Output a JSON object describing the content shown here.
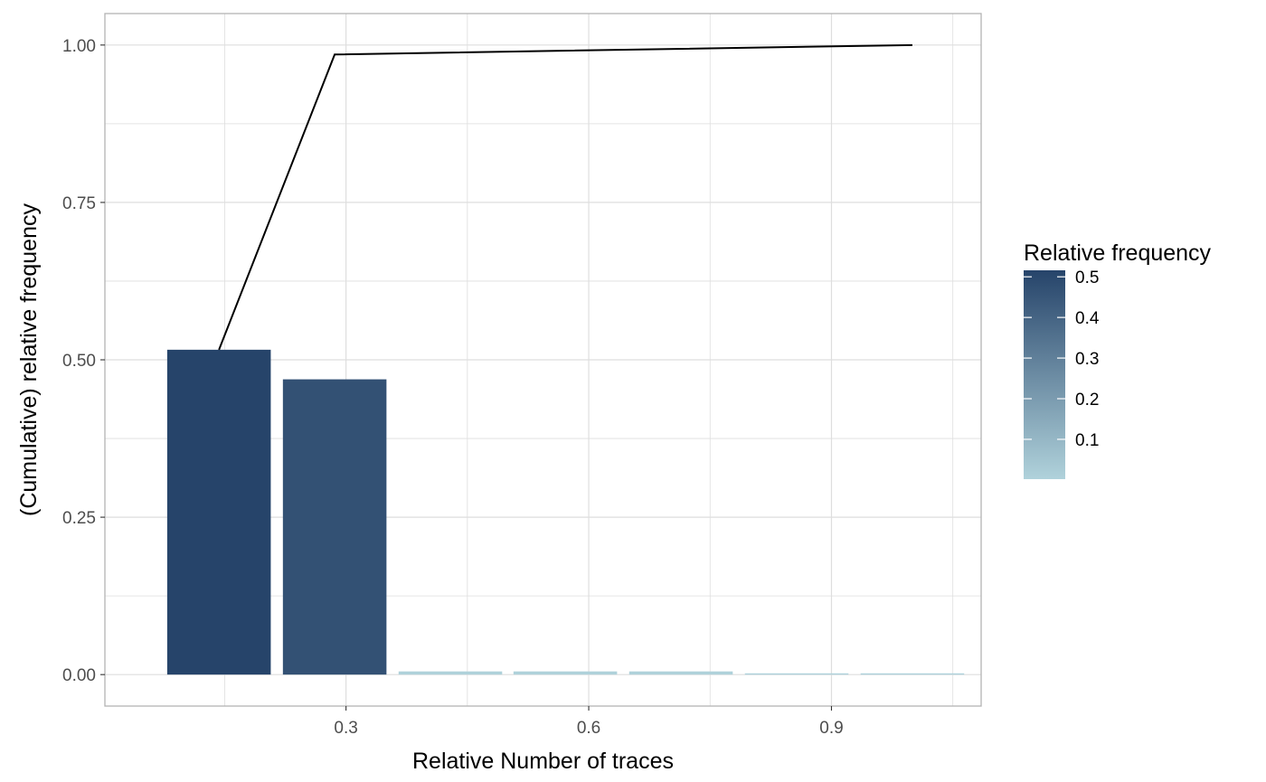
{
  "chart_data": {
    "type": "bar",
    "xlabel": "Relative Number of traces",
    "ylabel": "(Cumulative) relative frequency",
    "x_ticks": [
      0.3,
      0.6,
      0.9
    ],
    "x_tick_labels": [
      "0.3",
      "0.6",
      "0.9"
    ],
    "y_ticks": [
      0,
      0.25,
      0.5,
      0.75,
      1.0
    ],
    "y_tick_labels": [
      "0.00",
      "0.25",
      "0.50",
      "0.75",
      "1.00"
    ],
    "xlim": [
      0.002,
      1.085
    ],
    "ylim": [
      -0.05,
      1.05
    ],
    "grid": true,
    "bars": [
      {
        "x": 0.143,
        "y": 0.516
      },
      {
        "x": 0.286,
        "y": 0.469
      },
      {
        "x": 0.429,
        "y": 0.005
      },
      {
        "x": 0.571,
        "y": 0.005
      },
      {
        "x": 0.714,
        "y": 0.005
      },
      {
        "x": 0.857,
        "y": 0.002
      },
      {
        "x": 1.0,
        "y": 0.002
      }
    ],
    "bar_width": 0.128,
    "cumulative_line": [
      {
        "x": 0.143,
        "y": 0.516
      },
      {
        "x": 0.286,
        "y": 0.985
      },
      {
        "x": 1.0,
        "y": 1.0
      }
    ],
    "legend": {
      "title": "Relative frequency",
      "type": "colorbar",
      "placement": "right",
      "ticks": [
        0.1,
        0.2,
        0.3,
        0.4,
        0.5
      ],
      "tick_labels": [
        "0.1",
        "0.2",
        "0.3",
        "0.4",
        "0.5"
      ],
      "range": [
        0.002,
        0.516
      ],
      "color_low": "#b0d2db",
      "color_high": "#26446a"
    },
    "colors": {
      "line": "#000000",
      "grid": "#dedede",
      "panel_border": "#b3b3b3"
    }
  }
}
